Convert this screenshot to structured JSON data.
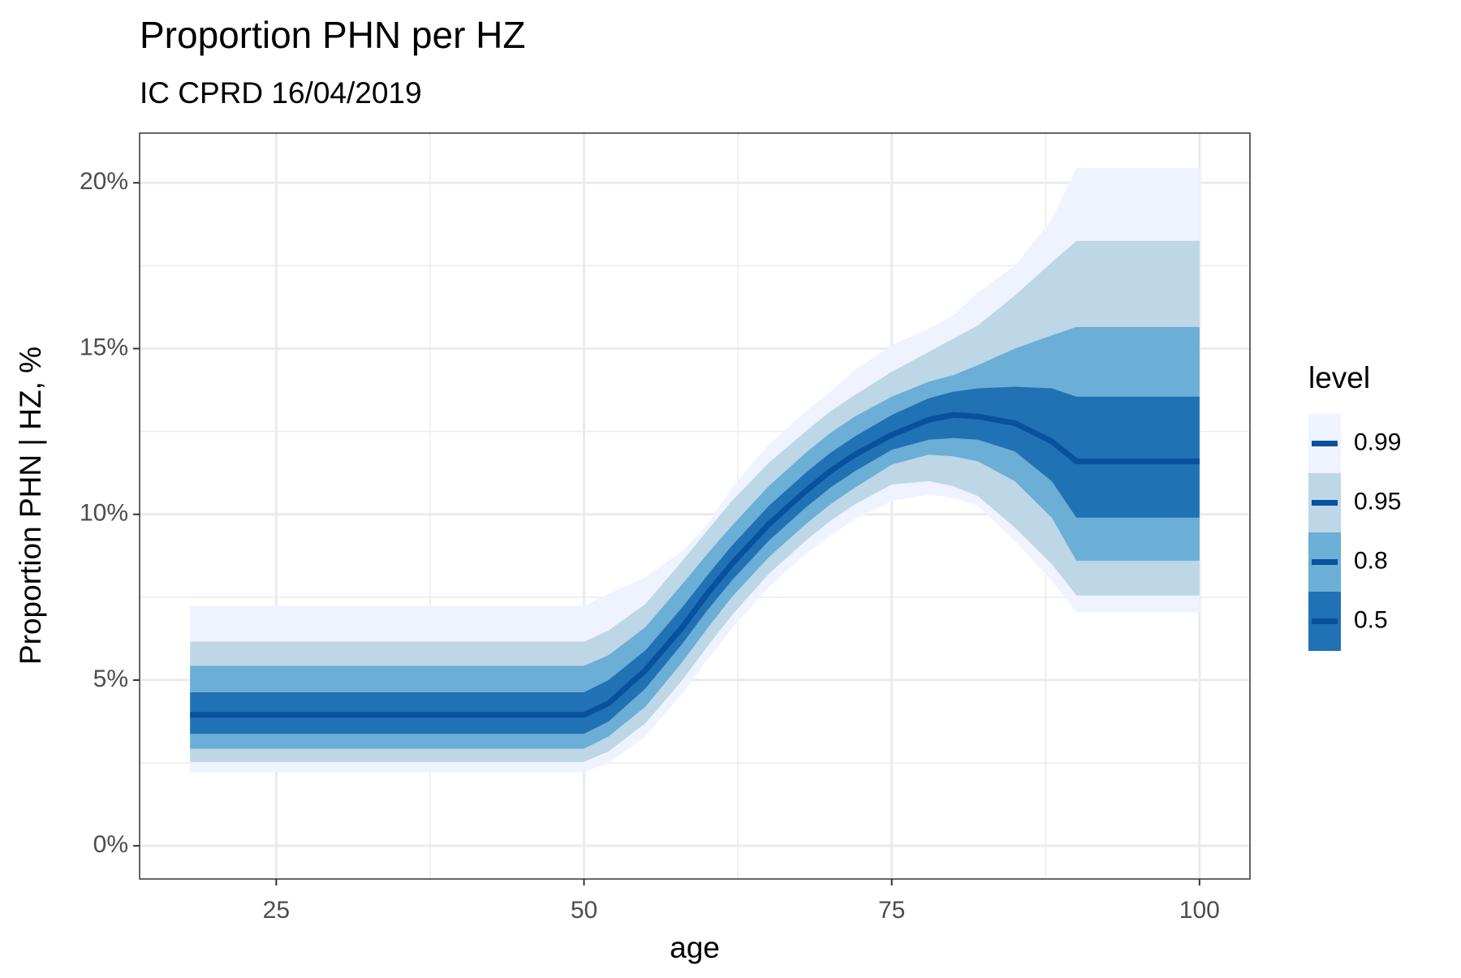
{
  "chart_data": {
    "type": "ribbon",
    "title": "Proportion PHN per HZ",
    "subtitle": "IC CPRD 16/04/2019",
    "x_label": "age",
    "y_label": "Proportion PHN | HZ, %",
    "legend_title": "level",
    "x": [
      18,
      50,
      52,
      55,
      58,
      60,
      62,
      65,
      68,
      70,
      72,
      75,
      78,
      80,
      82,
      85,
      88,
      90,
      100
    ],
    "line_color": "#08519c",
    "line_values": [
      3.95,
      3.95,
      4.3,
      5.3,
      6.6,
      7.6,
      8.5,
      9.7,
      10.7,
      11.3,
      11.8,
      12.4,
      12.85,
      13.0,
      12.95,
      12.75,
      12.2,
      11.6,
      11.6
    ],
    "series": [
      {
        "name": "0.99",
        "color": "#eff3ff",
        "lower": [
          2.22,
          2.22,
          2.5,
          3.3,
          4.6,
          5.6,
          6.55,
          7.8,
          8.8,
          9.35,
          9.85,
          10.4,
          10.6,
          10.5,
          10.25,
          9.2,
          8.0,
          7.05,
          7.05
        ],
        "upper": [
          7.24,
          7.24,
          7.6,
          8.1,
          8.9,
          9.7,
          10.8,
          12.1,
          13.1,
          13.7,
          14.35,
          15.1,
          15.6,
          16.0,
          16.7,
          17.5,
          18.9,
          20.45,
          20.45
        ]
      },
      {
        "name": "0.95",
        "color": "#bdd7e7",
        "lower": [
          2.53,
          2.53,
          2.85,
          3.7,
          5.0,
          6.0,
          6.95,
          8.2,
          9.2,
          9.8,
          10.3,
          10.9,
          11.0,
          10.85,
          10.55,
          9.6,
          8.5,
          7.55,
          7.55
        ],
        "upper": [
          6.16,
          6.16,
          6.5,
          7.3,
          8.6,
          9.5,
          10.4,
          11.55,
          12.5,
          13.1,
          13.6,
          14.3,
          14.9,
          15.3,
          15.7,
          16.6,
          17.6,
          18.25,
          18.25
        ]
      },
      {
        "name": "0.8",
        "color": "#6baed6",
        "lower": [
          2.93,
          2.93,
          3.3,
          4.2,
          5.55,
          6.55,
          7.5,
          8.7,
          9.7,
          10.3,
          10.8,
          11.5,
          11.8,
          11.75,
          11.6,
          11.0,
          9.9,
          8.6,
          8.6
        ],
        "upper": [
          5.43,
          5.43,
          5.75,
          6.6,
          7.9,
          8.8,
          9.65,
          10.85,
          11.85,
          12.45,
          12.95,
          13.55,
          14.0,
          14.2,
          14.5,
          15.0,
          15.4,
          15.65,
          15.65
        ]
      },
      {
        "name": "0.5",
        "color": "#2171b5",
        "lower": [
          3.38,
          3.38,
          3.75,
          4.75,
          6.1,
          7.1,
          8.0,
          9.2,
          10.2,
          10.8,
          11.3,
          11.95,
          12.25,
          12.3,
          12.25,
          11.9,
          11.0,
          9.9,
          9.9
        ],
        "upper": [
          4.63,
          4.63,
          5.0,
          5.9,
          7.2,
          8.15,
          9.05,
          10.25,
          11.25,
          11.85,
          12.35,
          13.0,
          13.5,
          13.7,
          13.8,
          13.85,
          13.8,
          13.55,
          13.55
        ]
      }
    ],
    "xlim": [
      13.9,
      104.1
    ],
    "xticks": [
      25,
      50,
      75,
      100
    ],
    "ylim": [
      -1.0,
      21.5
    ],
    "yticks": [
      {
        "value": 0,
        "label": "0%"
      },
      {
        "value": 5,
        "label": "5%"
      },
      {
        "value": 10,
        "label": "10%"
      },
      {
        "value": 15,
        "label": "15%"
      },
      {
        "value": 20,
        "label": "20%"
      }
    ],
    "grid": true,
    "legend_position": "right"
  }
}
